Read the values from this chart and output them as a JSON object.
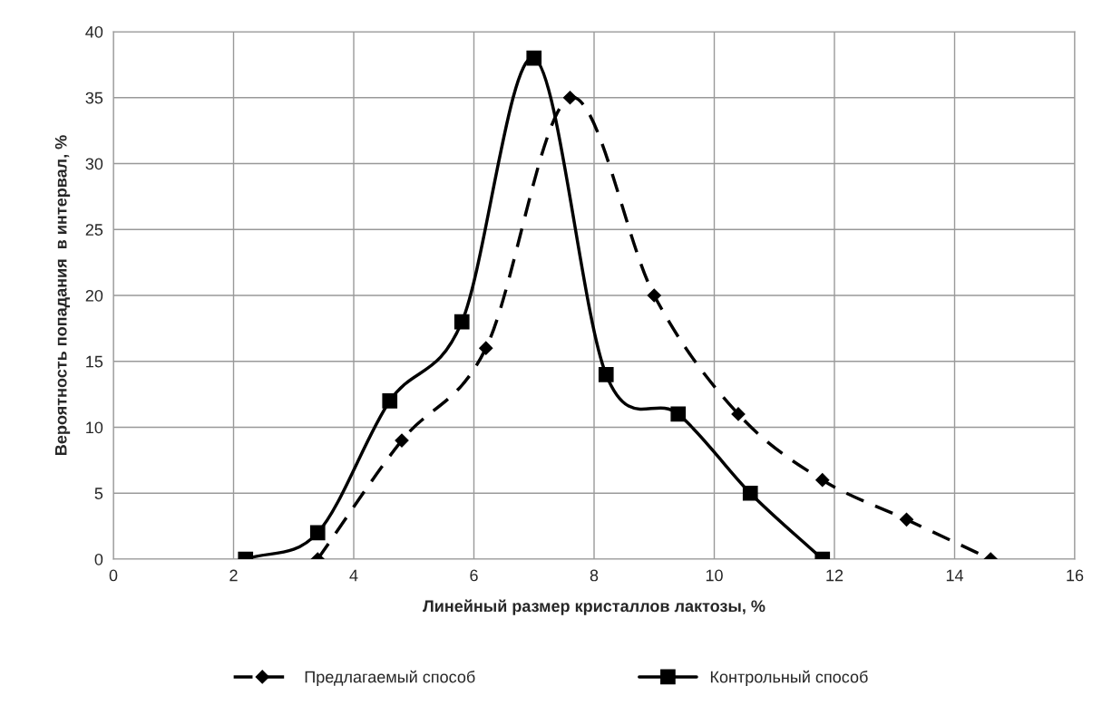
{
  "chart_data": {
    "type": "line",
    "xlabel": "Линейный размер кристаллов лактозы, %",
    "ylabel": "Вероятность попадания  в интервал, %",
    "xlim": [
      0,
      16
    ],
    "xticks": [
      0,
      2,
      4,
      6,
      8,
      10,
      12,
      14,
      16
    ],
    "ylim": [
      0,
      40
    ],
    "yticks": [
      0,
      5,
      10,
      15,
      20,
      25,
      30,
      35,
      40
    ],
    "grid": true,
    "legend": "bottom",
    "series": [
      {
        "name": "Предлагаемый способ",
        "color": "#000000",
        "marker": "diamond",
        "line_style": "dashed",
        "x": [
          3.4,
          4.8,
          6.2,
          7.6,
          9.0,
          10.4,
          11.8,
          13.2,
          14.6
        ],
        "values": [
          0,
          9,
          16,
          35,
          20,
          11,
          6,
          3,
          0
        ]
      },
      {
        "name": "Контрольный способ",
        "color": "#000000",
        "marker": "square",
        "line_style": "solid",
        "x": [
          2.2,
          3.4,
          4.6,
          5.8,
          7.0,
          8.2,
          9.4,
          10.6,
          11.8
        ],
        "values": [
          0,
          2,
          12,
          18,
          38,
          14,
          11,
          5,
          0
        ]
      }
    ]
  }
}
